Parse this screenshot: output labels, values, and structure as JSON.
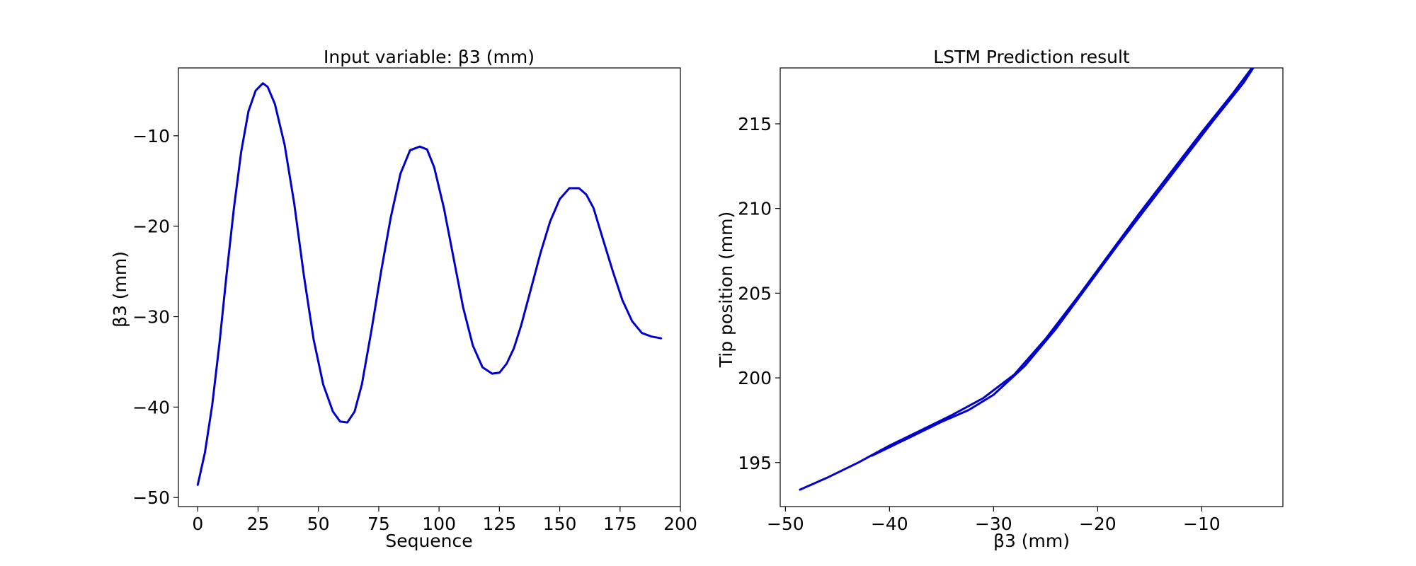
{
  "chart_data": [
    {
      "type": "line",
      "title": "Input variable: β3 (mm)",
      "xlabel": "Sequence",
      "ylabel": "β3 (mm)",
      "xlim": [
        -8,
        200
      ],
      "ylim": [
        -51,
        -2.5
      ],
      "xticks": [
        0,
        25,
        50,
        75,
        100,
        125,
        150,
        175,
        200
      ],
      "xtick_labels": [
        "0",
        "25",
        "50",
        "75",
        "100",
        "125",
        "150",
        "175",
        "200"
      ],
      "yticks": [
        -50,
        -40,
        -30,
        -20,
        -10
      ],
      "ytick_labels": [
        "−50",
        "−40",
        "−30",
        "−20",
        "−10"
      ],
      "grid": false,
      "color": "#0000cc",
      "series": [
        {
          "x": [
            0,
            3,
            6,
            9,
            12,
            15,
            18,
            21,
            24,
            27,
            29,
            32,
            36,
            40,
            44,
            48,
            52,
            56,
            59,
            62,
            65,
            68,
            72,
            76,
            80,
            84,
            88,
            92,
            95,
            98,
            102,
            106,
            110,
            114,
            118,
            122,
            125,
            128,
            131,
            134,
            138,
            142,
            146,
            150,
            154,
            158,
            161,
            164,
            168,
            172,
            176,
            180,
            184,
            188,
            192
          ],
          "y": [
            -48.6,
            -45,
            -39.8,
            -33,
            -25.2,
            -18,
            -11.8,
            -7.3,
            -5,
            -4.2,
            -4.6,
            -6.5,
            -11,
            -17.5,
            -25.5,
            -32.5,
            -37.5,
            -40.5,
            -41.6,
            -41.7,
            -40.5,
            -37.5,
            -31.5,
            -25,
            -19,
            -14.2,
            -11.6,
            -11.2,
            -11.5,
            -13.5,
            -18,
            -23.5,
            -29,
            -33.2,
            -35.6,
            -36.3,
            -36.2,
            -35.2,
            -33.5,
            -31,
            -27,
            -23,
            -19.5,
            -17,
            -15.8,
            -15.8,
            -16.5,
            -18,
            -21.5,
            -25,
            -28.2,
            -30.5,
            -31.8,
            -32.2,
            -32.4
          ]
        }
      ]
    },
    {
      "type": "line",
      "title": "LSTM Prediction result",
      "xlabel": "β3 (mm)",
      "ylabel": "Tip position (mm)",
      "xlim": [
        -50.5,
        -2.2
      ],
      "ylim": [
        192.4,
        218.3
      ],
      "xticks": [
        -50,
        -40,
        -30,
        -20,
        -10
      ],
      "xtick_labels": [
        "−50",
        "−40",
        "−30",
        "−20",
        "−10"
      ],
      "yticks": [
        195,
        200,
        205,
        210,
        215
      ],
      "ytick_labels": [
        "195",
        "200",
        "205",
        "210",
        "215"
      ],
      "grid": false,
      "color": "#0000cc",
      "series": [
        {
          "x": [
            -48.6,
            -46,
            -43,
            -40,
            -37,
            -34,
            -31,
            -28,
            -25,
            -22,
            -19,
            -16,
            -13,
            -10,
            -7,
            -4.2
          ],
          "y": [
            193.4,
            194.1,
            195.0,
            196.0,
            196.9,
            197.8,
            198.8,
            200.2,
            202.3,
            204.7,
            207.2,
            209.7,
            212.1,
            214.5,
            216.8,
            219.1
          ]
        },
        {
          "x": [
            -41.7,
            -38,
            -35,
            -32.4,
            -30,
            -27,
            -24,
            -21,
            -18,
            -15,
            -12,
            -9,
            -6,
            -4.2
          ],
          "y": [
            195.4,
            196.5,
            197.4,
            198.1,
            199.0,
            200.7,
            202.9,
            205.4,
            207.9,
            210.3,
            212.7,
            215.1,
            217.4,
            219.1
          ]
        }
      ]
    }
  ]
}
